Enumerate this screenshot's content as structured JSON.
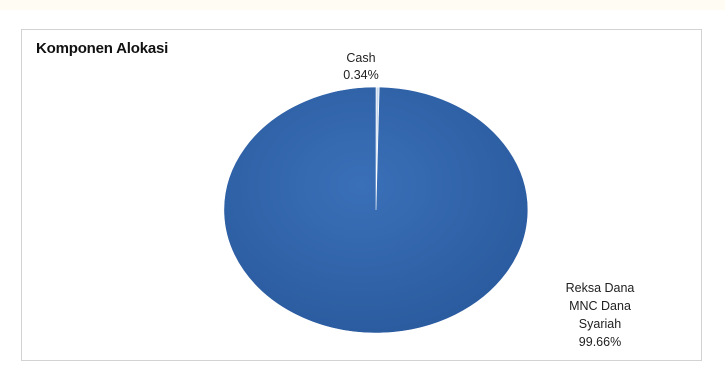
{
  "chart_data": {
    "type": "pie",
    "title": "Komponen Alokasi",
    "slices": [
      {
        "label_lines": [
          "Cash",
          "0.34%"
        ],
        "value": 0.34,
        "color": "#c9daef"
      },
      {
        "label_lines": [
          "Reksa Dana",
          "MNC Dana",
          "Syariah",
          "99.66%"
        ],
        "value": 99.66,
        "color": "#2f62a8"
      }
    ],
    "legend": "none"
  }
}
